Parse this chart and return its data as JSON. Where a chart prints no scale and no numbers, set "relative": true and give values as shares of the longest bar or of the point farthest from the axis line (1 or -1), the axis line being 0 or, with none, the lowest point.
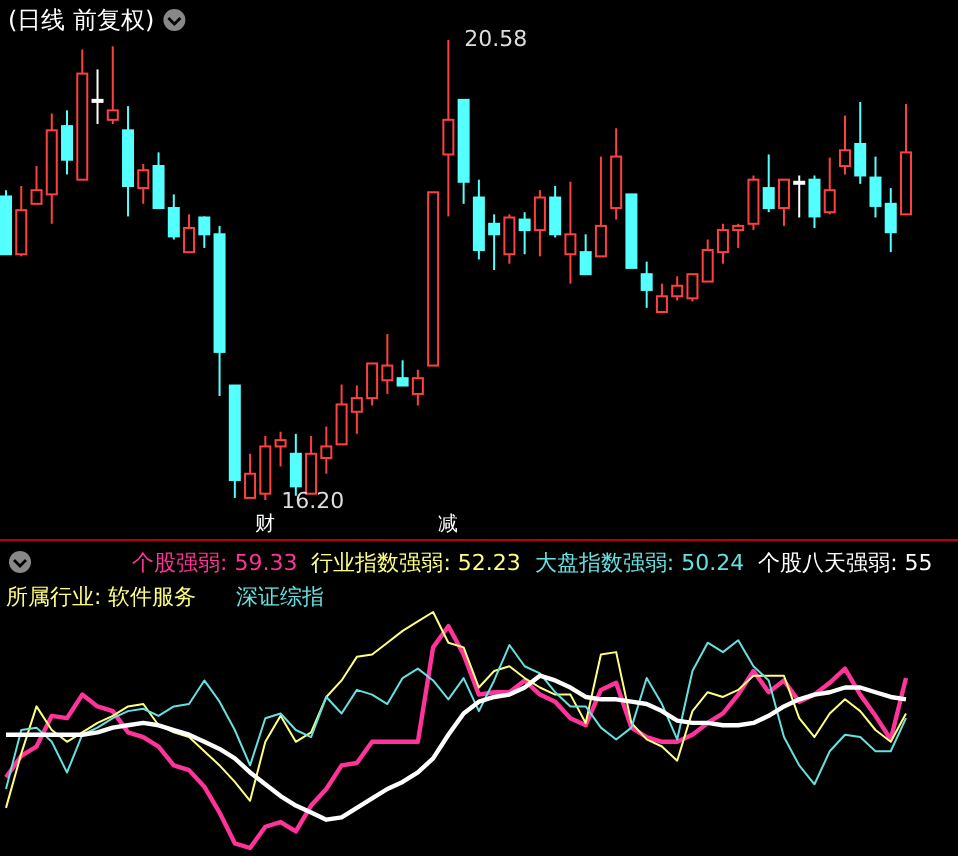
{
  "chart_data": [
    {
      "type": "candlestick",
      "title": "(日线 前复权)",
      "categories": [
        null,
        null,
        null,
        null,
        null,
        null,
        null,
        null,
        null,
        null,
        null,
        null,
        null,
        null,
        null,
        null,
        null,
        null,
        null,
        null,
        null,
        null,
        null,
        null,
        null,
        null,
        null,
        null,
        null,
        null,
        null,
        null,
        null,
        null,
        null,
        null,
        null,
        null,
        null,
        null,
        null,
        null,
        null,
        null,
        null,
        null,
        null,
        null,
        null,
        null,
        null,
        null,
        null,
        null,
        null,
        null,
        null,
        null,
        null,
        null
      ],
      "ohlc": [
        [
          19.09,
          19.15,
          18.54,
          18.54
        ],
        [
          18.54,
          19.19,
          18.52,
          18.96
        ],
        [
          19.02,
          19.38,
          19.02,
          19.15
        ],
        [
          19.11,
          19.88,
          18.83,
          19.72
        ],
        [
          19.76,
          19.91,
          19.3,
          19.44
        ],
        [
          19.25,
          20.49,
          19.25,
          20.26
        ],
        [
          20.01,
          20.3,
          19.78,
          20.01
        ],
        [
          19.82,
          20.52,
          19.78,
          19.91
        ],
        [
          19.72,
          19.95,
          18.9,
          19.19
        ],
        [
          19.17,
          19.4,
          19.02,
          19.34
        ],
        [
          19.38,
          19.51,
          18.98,
          18.98
        ],
        [
          18.98,
          19.11,
          18.68,
          18.71
        ],
        [
          18.56,
          18.92,
          18.56,
          18.79
        ],
        [
          18.89,
          18.9,
          18.6,
          18.73
        ],
        [
          18.73,
          18.81,
          17.19,
          17.61
        ],
        [
          17.29,
          17.29,
          16.22,
          16.39
        ],
        [
          16.22,
          16.64,
          16.22,
          16.45
        ],
        [
          16.26,
          16.81,
          16.2,
          16.71
        ],
        [
          16.71,
          16.85,
          16.52,
          16.77
        ],
        [
          16.64,
          16.83,
          16.24,
          16.33
        ],
        [
          16.26,
          16.81,
          16.26,
          16.64
        ],
        [
          16.6,
          16.9,
          16.45,
          16.71
        ],
        [
          16.73,
          17.3,
          16.73,
          17.11
        ],
        [
          17.04,
          17.29,
          16.83,
          17.17
        ],
        [
          17.17,
          17.5,
          17.1,
          17.5
        ],
        [
          17.34,
          17.78,
          17.21,
          17.48
        ],
        [
          17.36,
          17.53,
          17.29,
          17.29
        ],
        [
          17.21,
          17.44,
          17.1,
          17.36
        ],
        [
          17.48,
          19.13,
          17.48,
          19.13
        ],
        [
          19.49,
          20.58,
          18.9,
          19.82
        ],
        [
          20.01,
          20.01,
          19.02,
          19.23
        ],
        [
          19.08,
          19.25,
          18.49,
          18.58
        ],
        [
          18.83,
          18.92,
          18.39,
          18.73
        ],
        [
          18.54,
          18.92,
          18.45,
          18.89
        ],
        [
          18.87,
          18.94,
          18.54,
          18.77
        ],
        [
          18.77,
          19.15,
          18.52,
          19.08
        ],
        [
          19.08,
          19.19,
          18.7,
          18.73
        ],
        [
          18.54,
          19.23,
          18.26,
          18.73
        ],
        [
          18.56,
          18.73,
          18.35,
          18.35
        ],
        [
          18.52,
          19.47,
          18.52,
          18.81
        ],
        [
          18.98,
          19.74,
          18.87,
          19.47
        ],
        [
          19.11,
          19.11,
          18.41,
          18.41
        ],
        [
          18.35,
          18.47,
          18.03,
          18.2
        ],
        [
          17.99,
          18.26,
          17.99,
          18.14
        ],
        [
          18.14,
          18.33,
          18.1,
          18.24
        ],
        [
          18.12,
          18.35,
          18.09,
          18.35
        ],
        [
          18.28,
          18.68,
          18.28,
          18.58
        ],
        [
          18.56,
          18.83,
          18.45,
          18.77
        ],
        [
          18.77,
          18.83,
          18.6,
          18.81
        ],
        [
          18.83,
          19.29,
          18.77,
          19.25
        ],
        [
          19.17,
          19.49,
          18.94,
          18.98
        ],
        [
          18.98,
          19.25,
          18.81,
          19.25
        ],
        [
          19.23,
          19.29,
          18.89,
          19.23
        ],
        [
          19.25,
          19.29,
          18.79,
          18.9
        ],
        [
          18.94,
          19.46,
          18.92,
          19.15
        ],
        [
          19.38,
          19.86,
          19.3,
          19.53
        ],
        [
          19.59,
          19.99,
          19.21,
          19.29
        ],
        [
          19.27,
          19.47,
          18.89,
          19.0
        ],
        [
          19.02,
          19.17,
          18.56,
          18.75
        ],
        [
          18.92,
          19.97,
          18.92,
          19.51
        ]
      ],
      "annotations": [
        "16.20",
        "20.58",
        "财",
        "减"
      ]
    },
    {
      "type": "line",
      "relative": true,
      "legend": "top",
      "categories": [
        null,
        null,
        null,
        null,
        null,
        null,
        null,
        null,
        null,
        null,
        null,
        null,
        null,
        null,
        null,
        null,
        null,
        null,
        null,
        null,
        null,
        null,
        null,
        null,
        null,
        null,
        null,
        null,
        null,
        null,
        null,
        null,
        null,
        null,
        null,
        null,
        null,
        null,
        null,
        null,
        null,
        null,
        null,
        null,
        null,
        null,
        null,
        null,
        null,
        null,
        null,
        null,
        null,
        null,
        null,
        null,
        null,
        null,
        null,
        null
      ],
      "series": [
        {
          "name": "个股强弱: 59.33",
          "color": "#ff3399",
          "values": [
            0.3,
            0.39,
            0.43,
            0.56,
            0.55,
            0.65,
            0.6,
            0.58,
            0.49,
            0.47,
            0.43,
            0.35,
            0.33,
            0.26,
            0.15,
            0.02,
            0,
            0.09,
            0.11,
            0.07,
            0.18,
            0.25,
            0.35,
            0.36,
            0.45,
            0.45,
            0.45,
            0.45,
            0.85,
            0.94,
            0.82,
            0.65,
            0.66,
            0.66,
            0.71,
            0.65,
            0.62,
            0.55,
            0.52,
            0.67,
            0.7,
            0.51,
            0.47,
            0.45,
            0.45,
            0.48,
            0.53,
            0.57,
            0.65,
            0.75,
            0.66,
            0.71,
            0.62,
            0.65,
            0.7,
            0.76,
            0.65,
            0.56,
            0.46,
            0.72
          ]
        },
        {
          "name": "行业指数强弱: 52.23",
          "color": "#ffff80",
          "values": [
            0.17,
            0.4,
            0.6,
            0.5,
            0.45,
            0.49,
            0.53,
            0.56,
            0.6,
            0.61,
            0.52,
            0.49,
            0.47,
            0.41,
            0.35,
            0.28,
            0.2,
            0.45,
            0.56,
            0.45,
            0.49,
            0.64,
            0.71,
            0.81,
            0.82,
            0.87,
            0.92,
            0.96,
            1,
            0.87,
            0.85,
            0.68,
            0.75,
            0.77,
            0.72,
            0.68,
            0.65,
            0.65,
            0.53,
            0.82,
            0.83,
            0.53,
            0.46,
            0.43,
            0.37,
            0.58,
            0.66,
            0.64,
            0.67,
            0.73,
            0.73,
            0.73,
            0.55,
            0.47,
            0.57,
            0.63,
            0.58,
            0.5,
            0.45,
            0.57
          ]
        },
        {
          "name": "大盘指数强弱: 50.24",
          "color": "#66e0e0",
          "values": [
            0.25,
            0.5,
            0.51,
            0.45,
            0.32,
            0.48,
            0.51,
            0.55,
            0.58,
            0.59,
            0.56,
            0.6,
            0.61,
            0.71,
            0.62,
            0.5,
            0.35,
            0.55,
            0.57,
            0.5,
            0.47,
            0.64,
            0.57,
            0.67,
            0.65,
            0.61,
            0.72,
            0.76,
            0.71,
            0.63,
            0.72,
            0.58,
            0.71,
            0.86,
            0.77,
            0.74,
            0.66,
            0.6,
            0.6,
            0.51,
            0.46,
            0.51,
            0.72,
            0.61,
            0.46,
            0.75,
            0.87,
            0.83,
            0.88,
            0.77,
            0.71,
            0.47,
            0.35,
            0.27,
            0.41,
            0.48,
            0.47,
            0.41,
            0.41,
            0.55
          ]
        },
        {
          "name": "个股八天强弱: 55",
          "color": "#ffffff",
          "values": [
            0.48,
            0.48,
            0.48,
            0.48,
            0.48,
            0.48,
            0.49,
            0.51,
            0.52,
            0.53,
            0.52,
            0.5,
            0.48,
            0.45,
            0.42,
            0.38,
            0.32,
            0.27,
            0.22,
            0.18,
            0.15,
            0.12,
            0.13,
            0.17,
            0.21,
            0.25,
            0.28,
            0.32,
            0.38,
            0.48,
            0.57,
            0.62,
            0.64,
            0.65,
            0.68,
            0.73,
            0.71,
            0.68,
            0.64,
            0.63,
            0.63,
            0.62,
            0.61,
            0.58,
            0.54,
            0.53,
            0.53,
            0.52,
            0.52,
            0.53,
            0.56,
            0.6,
            0.63,
            0.65,
            0.66,
            0.68,
            0.68,
            0.66,
            0.64,
            0.63
          ]
        }
      ],
      "annotations": [
        "所属行业: 软件服务",
        "深证综指"
      ]
    }
  ]
}
